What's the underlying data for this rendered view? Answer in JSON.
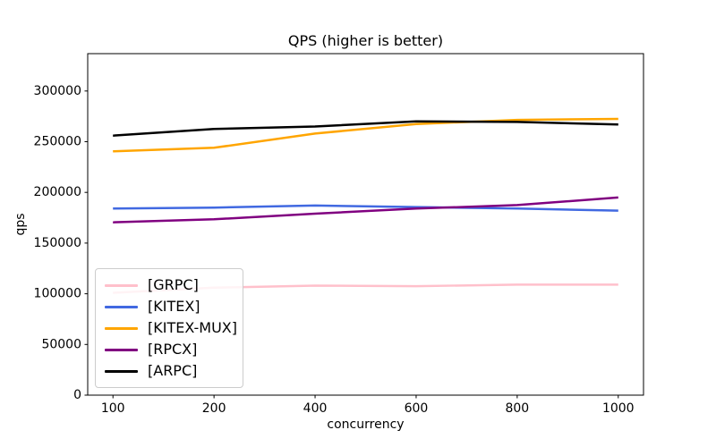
{
  "chart_data": {
    "type": "line",
    "title": "QPS (higher is better)",
    "xlabel": "concurrency",
    "ylabel": "qps",
    "categories": [
      "100",
      "200",
      "400",
      "600",
      "800",
      "1000"
    ],
    "series": [
      {
        "name": "[GRPC]",
        "color": "#ffc0cb",
        "values": [
          101000,
          106000,
          108000,
          107500,
          109000,
          109000
        ]
      },
      {
        "name": "[KITEX]",
        "color": "#4169e1",
        "values": [
          184000,
          185000,
          187000,
          185500,
          184000,
          182000
        ]
      },
      {
        "name": "[KITEX-MUX]",
        "color": "#ffa500",
        "values": [
          240500,
          244000,
          258000,
          267500,
          271500,
          272500
        ]
      },
      {
        "name": "[RPCX]",
        "color": "#800080",
        "values": [
          170500,
          173500,
          179000,
          184000,
          187500,
          195000
        ]
      },
      {
        "name": "[ARPC]",
        "color": "#000000",
        "values": [
          256000,
          262500,
          265000,
          270000,
          269500,
          267000
        ]
      }
    ],
    "yticks": [
      "0",
      "50000",
      "100000",
      "150000",
      "200000",
      "250000",
      "300000"
    ],
    "ytick_values": [
      0,
      50000,
      100000,
      150000,
      200000,
      250000,
      300000
    ],
    "ylim": [
      0,
      336800
    ],
    "grid": false,
    "legend_position": "lower-left",
    "axis_color": "#000000",
    "background_color": "#ffffff"
  }
}
